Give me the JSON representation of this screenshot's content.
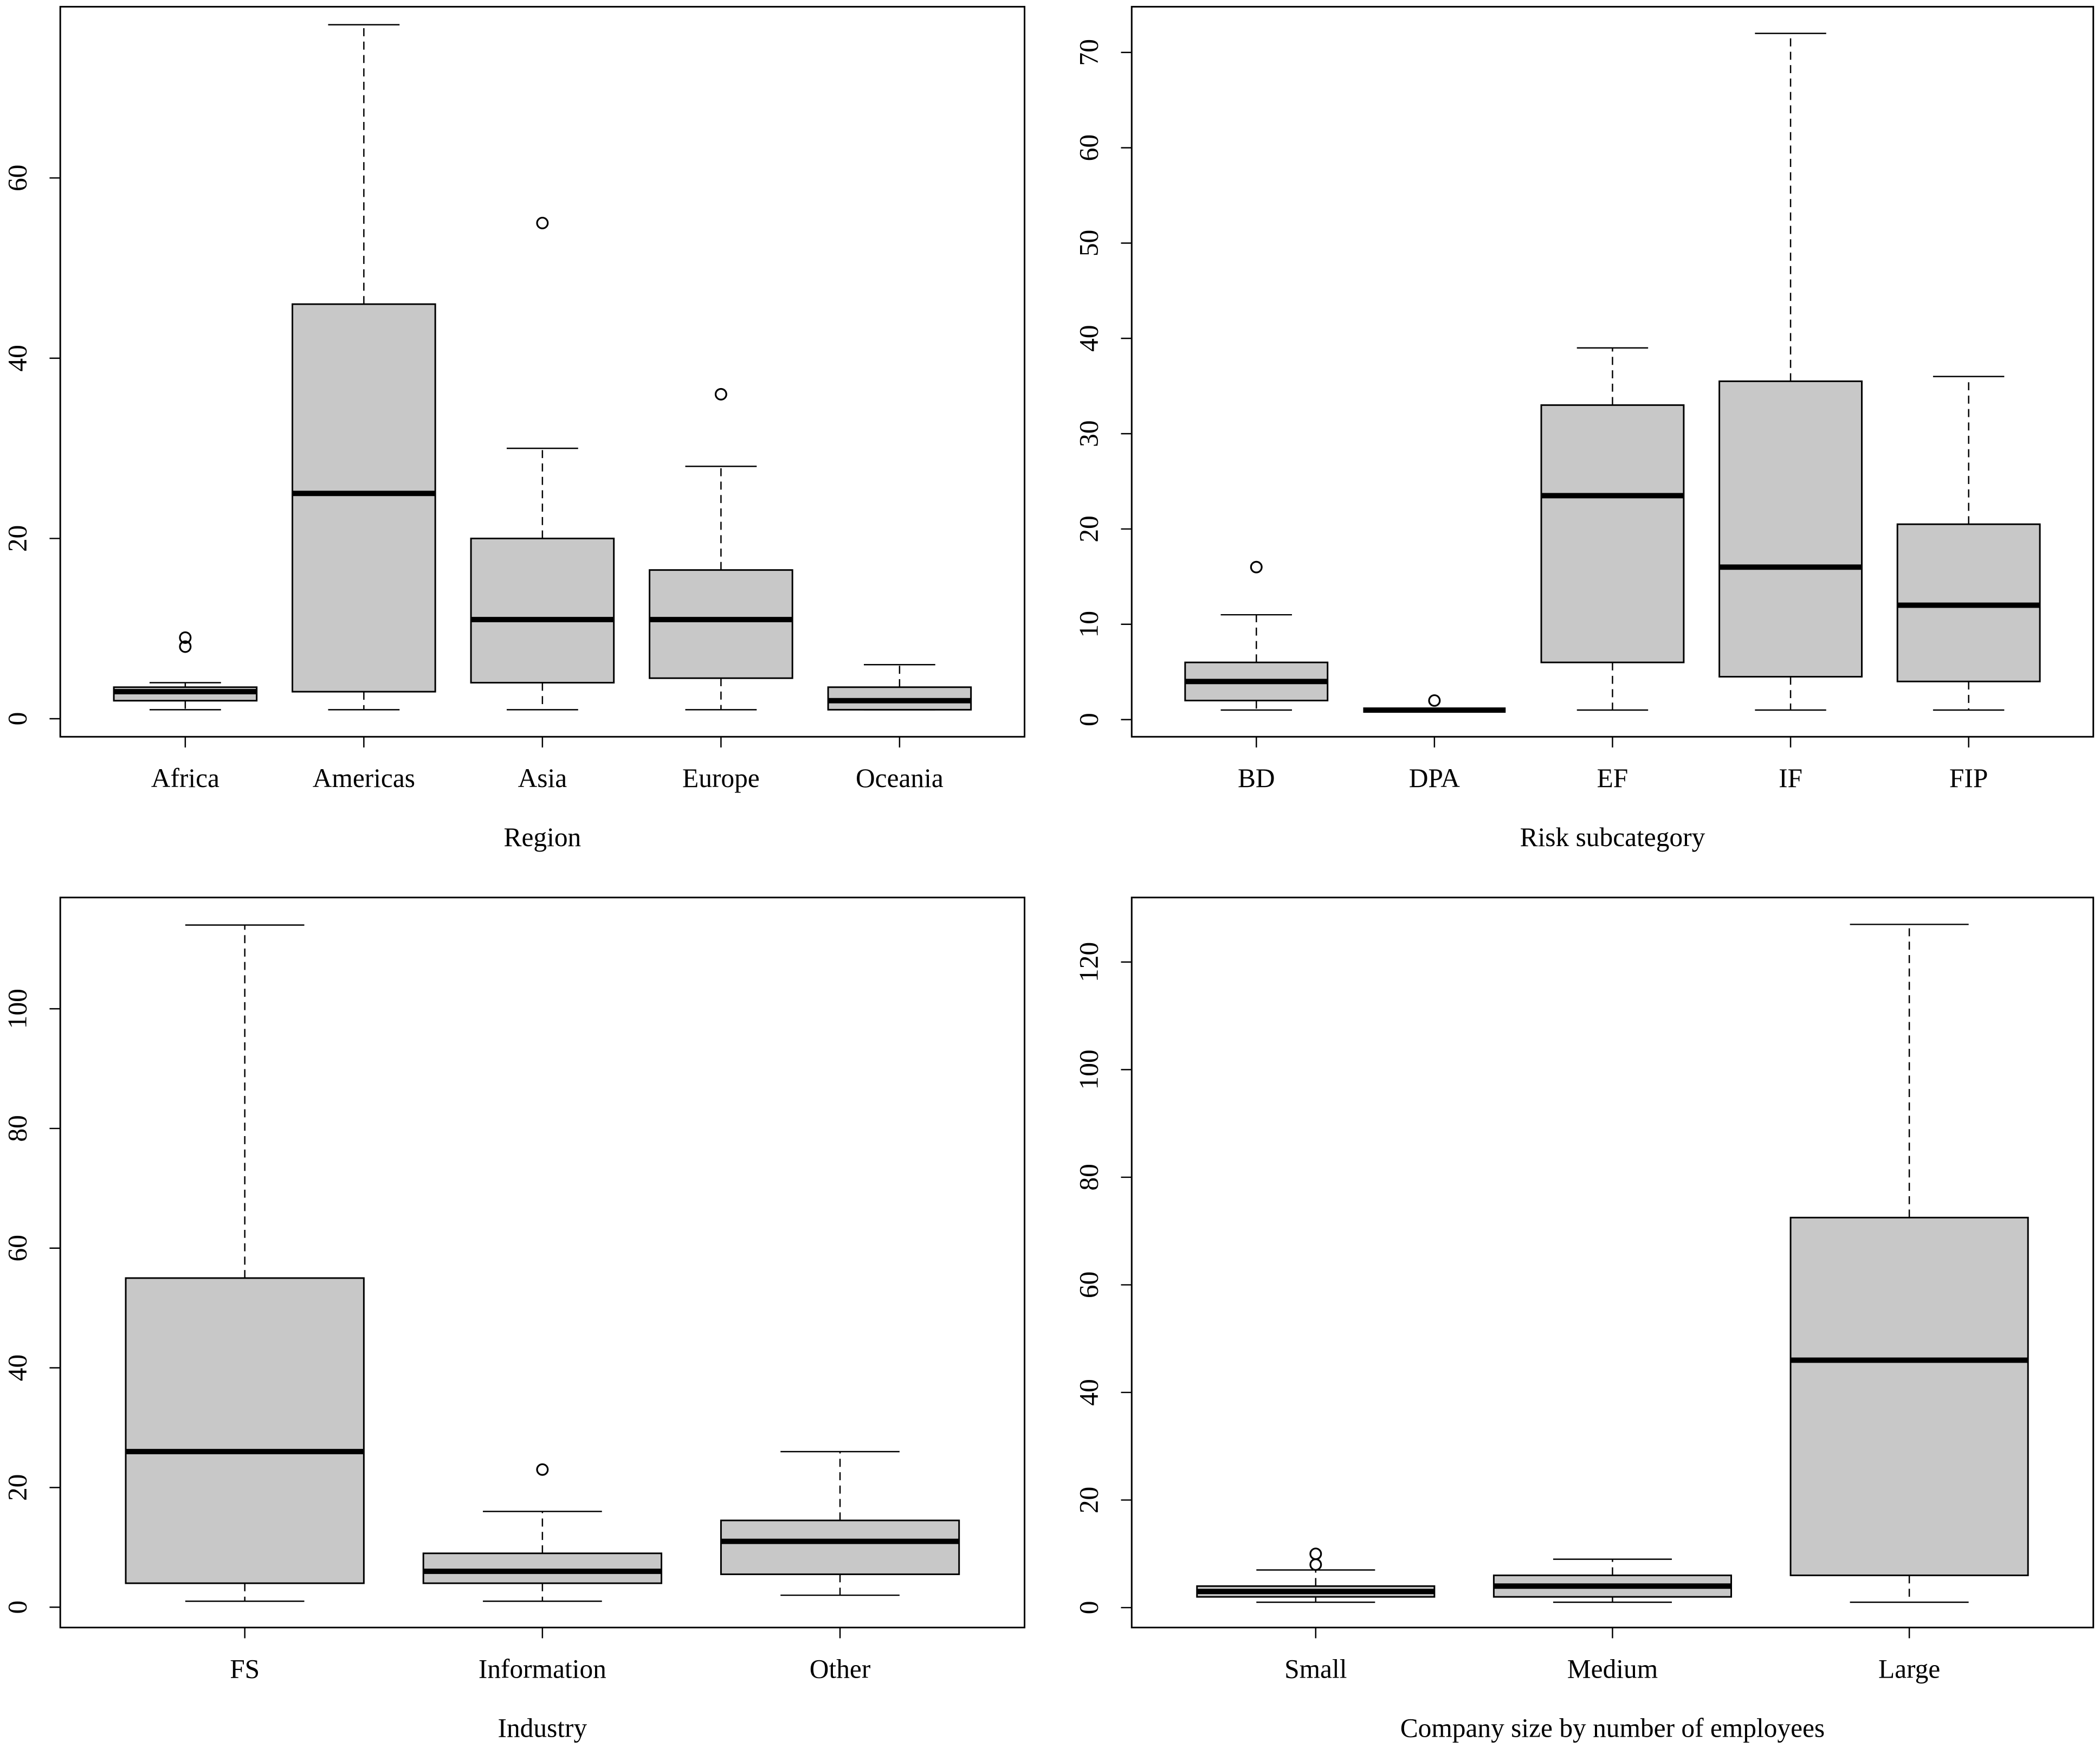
{
  "chart_data": [
    {
      "type": "boxplot",
      "xlabel": "Region",
      "categories": [
        "Africa",
        "Americas",
        "Asia",
        "Europe",
        "Oceania"
      ],
      "boxes": [
        {
          "min": 1,
          "q1": 2,
          "median": 3,
          "q3": 3.5,
          "max": 4,
          "outliers": [
            8,
            9
          ]
        },
        {
          "min": 1,
          "q1": 3,
          "median": 25,
          "q3": 46,
          "max": 77,
          "outliers": []
        },
        {
          "min": 1,
          "q1": 4,
          "median": 11,
          "q3": 20,
          "max": 30,
          "outliers": [
            55
          ]
        },
        {
          "min": 1,
          "q1": 4.5,
          "median": 11,
          "q3": 16.5,
          "max": 28,
          "outliers": [
            36
          ]
        },
        {
          "min": 1,
          "q1": 1,
          "median": 2,
          "q3": 3.5,
          "max": 6,
          "outliers": []
        }
      ],
      "color": "#c8c8c8",
      "ylim": [
        -2,
        79
      ],
      "yticks": [
        0,
        20,
        40,
        60
      ]
    },
    {
      "type": "boxplot",
      "xlabel": "Risk subcategory",
      "categories": [
        "BD",
        "DPA",
        "EF",
        "IF",
        "FIP"
      ],
      "boxes": [
        {
          "min": 1,
          "q1": 2,
          "median": 4,
          "q3": 6,
          "max": 11,
          "outliers": [
            16
          ]
        },
        {
          "min": 1,
          "q1": 1,
          "median": 1,
          "q3": 1,
          "max": 1,
          "outliers": [
            2
          ]
        },
        {
          "min": 1,
          "q1": 6,
          "median": 23.5,
          "q3": 33,
          "max": 39,
          "outliers": []
        },
        {
          "min": 1,
          "q1": 4.5,
          "median": 16,
          "q3": 35.5,
          "max": 72,
          "outliers": []
        },
        {
          "min": 1,
          "q1": 4,
          "median": 12,
          "q3": 20.5,
          "max": 36,
          "outliers": []
        }
      ],
      "color": "#c8c8c8",
      "ylim": [
        -1.8,
        74.8
      ],
      "yticks": [
        0,
        10,
        20,
        30,
        40,
        50,
        60,
        70
      ]
    },
    {
      "type": "boxplot",
      "xlabel": "Industry",
      "categories": [
        "FS",
        "Information",
        "Other"
      ],
      "boxes": [
        {
          "min": 1,
          "q1": 4,
          "median": 26,
          "q3": 55,
          "max": 114,
          "outliers": []
        },
        {
          "min": 1,
          "q1": 4,
          "median": 6,
          "q3": 9,
          "max": 16,
          "outliers": [
            23
          ]
        },
        {
          "min": 2,
          "q1": 5.5,
          "median": 11,
          "q3": 14.5,
          "max": 26,
          "outliers": []
        }
      ],
      "color": "#c8c8c8",
      "ylim": [
        -3.4,
        118.6
      ],
      "yticks": [
        0,
        20,
        40,
        60,
        80,
        100
      ]
    },
    {
      "type": "boxplot",
      "xlabel": "Company size by number of employees",
      "categories": [
        "Small",
        "Medium",
        "Large"
      ],
      "boxes": [
        {
          "min": 1,
          "q1": 2,
          "median": 3,
          "q3": 4,
          "max": 7,
          "outliers": [
            8,
            10
          ]
        },
        {
          "min": 1,
          "q1": 2,
          "median": 4,
          "q3": 6,
          "max": 9,
          "outliers": []
        },
        {
          "min": 1,
          "q1": 6,
          "median": 46,
          "q3": 72.5,
          "max": 127,
          "outliers": []
        }
      ],
      "color": "#c8c8c8",
      "ylim": [
        -3.7,
        132
      ],
      "yticks": [
        0,
        20,
        40,
        60,
        80,
        100,
        120
      ]
    }
  ]
}
